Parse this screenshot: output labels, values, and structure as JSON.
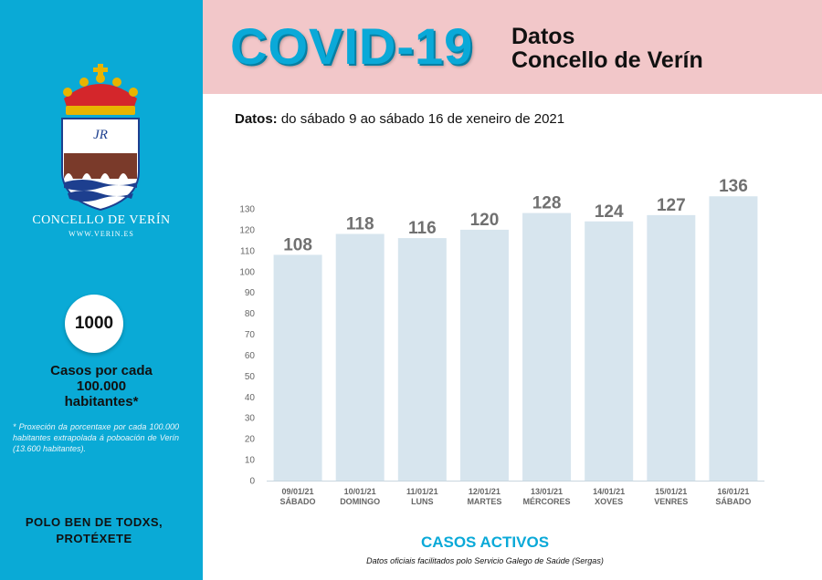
{
  "sidebar": {
    "brand_name": "CONCELLO DE VERÍN",
    "brand_web": "WWW.VERIN.ES",
    "rate_value": "1000",
    "rate_label_1": "Casos por cada",
    "rate_label_2": "100.000",
    "rate_label_3": "habitantes*",
    "rate_note": "* Proxeción da porcentaxe por cada 100.000 habitantes extrapolada á poboación de Verín (13.600 habitantes).",
    "slogan_1": "POLO BEN DE TODXS,",
    "slogan_2": "PROTÉXETE",
    "crest_monogram": "JR"
  },
  "header": {
    "title": "COVID-19",
    "line1": "Datos",
    "line2": "Concello de Verín"
  },
  "range": {
    "label": "Datos:",
    "text": " do sábado 9 ao sábado 16 de xeneiro de 2021"
  },
  "chart_data": {
    "type": "bar",
    "title": "CASOS ACTIVOS",
    "source": "Datos oficiais facilitados polo Servicio Galego de Saúde (Sergas)",
    "categories": [
      "09/01/21",
      "10/01/21",
      "11/01/21",
      "12/01/21",
      "13/01/21",
      "14/01/21",
      "15/01/21",
      "16/01/21"
    ],
    "day_names": [
      "SÁBADO",
      "DOMINGO",
      "LUNS",
      "MARTES",
      "MÉRCORES",
      "XOVES",
      "VENRES",
      "SÁBADO"
    ],
    "values": [
      108,
      118,
      116,
      120,
      128,
      124,
      127,
      136
    ],
    "ylim": [
      0,
      130
    ],
    "yticks": [
      0,
      10,
      20,
      30,
      40,
      50,
      60,
      70,
      80,
      90,
      100,
      110,
      120,
      130
    ],
    "grid": false,
    "bar_color": "#d7e5ee",
    "label_color": "#707070"
  }
}
